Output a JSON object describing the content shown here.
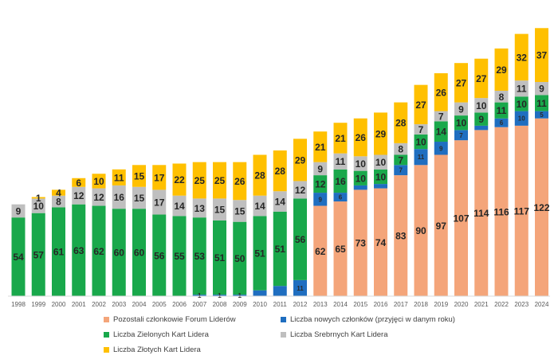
{
  "chart_data": {
    "type": "bar",
    "stacked": true,
    "categories": [
      "1998",
      "1999",
      "2000",
      "2001",
      "2002",
      "2003",
      "2004",
      "2005",
      "2006",
      "2007",
      "2008",
      "2009",
      "2010",
      "2011",
      "2012",
      "2013",
      "2014",
      "2015",
      "2016",
      "2017",
      "2018",
      "2019",
      "2020",
      "2021",
      "2022",
      "2023",
      "2024"
    ],
    "series": [
      {
        "name": "Pozostali członkowie Forum Liderów",
        "color": "#F4A57A",
        "values": [
          0,
          0,
          0,
          0,
          0,
          0,
          0,
          0,
          0,
          0,
          0,
          0,
          0,
          0,
          0,
          62,
          65,
          73,
          74,
          83,
          90,
          97,
          107,
          114,
          116,
          117,
          122
        ],
        "labels": [
          "",
          "",
          "",
          "",
          "",
          "",
          "",
          "",
          "",
          "",
          "",
          "",
          "",
          "",
          "",
          "62",
          "65",
          "73",
          "74",
          "83",
          "90",
          "97",
          "107",
          "114",
          "116",
          "117",
          "122"
        ]
      },
      {
        "name": "Liczba nowych członków (przyjęci w danym roku)",
        "color": "#1F6EC0",
        "values": [
          0,
          0,
          0,
          0,
          0,
          0,
          0,
          0,
          0,
          1,
          1,
          1,
          4,
          7,
          11,
          9,
          6,
          3,
          3,
          7,
          11,
          9,
          7,
          3,
          6,
          10,
          5
        ],
        "labels": [
          "",
          "",
          "",
          "",
          "",
          "",
          "",
          "",
          "",
          "1",
          "1",
          "1",
          "",
          "",
          "11",
          "9",
          "6",
          "",
          "",
          "7",
          "11",
          "9",
          "7",
          "",
          "6",
          "10",
          "5"
        ]
      },
      {
        "name": "Liczba Zielonych Kart Lidera",
        "color": "#19A84B",
        "values": [
          54,
          57,
          61,
          63,
          62,
          60,
          60,
          56,
          55,
          53,
          51,
          50,
          51,
          51,
          56,
          12,
          16,
          10,
          10,
          7,
          10,
          14,
          10,
          9,
          11,
          10,
          11
        ],
        "labels": [
          "54",
          "57",
          "61",
          "63",
          "62",
          "60",
          "60",
          "56",
          "55",
          "53",
          "51",
          "50",
          "51",
          "51",
          "56",
          "12",
          "16",
          "10",
          "10",
          "7",
          "10",
          "14",
          "10",
          "9",
          "11",
          "10",
          "11"
        ]
      },
      {
        "name": "Liczba Srebrnych Kart Lidera",
        "color": "#BFBFBF",
        "values": [
          9,
          10,
          8,
          12,
          12,
          16,
          15,
          17,
          14,
          13,
          15,
          15,
          14,
          14,
          12,
          9,
          11,
          10,
          10,
          8,
          7,
          7,
          9,
          10,
          8,
          11,
          9
        ],
        "labels": [
          "9",
          "10",
          "8",
          "12",
          "12",
          "16",
          "15",
          "17",
          "14",
          "13",
          "15",
          "15",
          "14",
          "14",
          "12",
          "9",
          "11",
          "10",
          "10",
          "8",
          "7",
          "7",
          "9",
          "10",
          "8",
          "11",
          "9"
        ]
      },
      {
        "name": "Liczba Złotych Kart Lidera",
        "color": "#FFC000",
        "values": [
          0,
          1,
          4,
          6,
          10,
          11,
          15,
          17,
          22,
          25,
          25,
          26,
          28,
          28,
          29,
          21,
          21,
          26,
          29,
          28,
          27,
          26,
          27,
          27,
          29,
          32,
          37
        ],
        "labels": [
          "",
          "1",
          "4",
          "6",
          "10",
          "11",
          "15",
          "17",
          "22",
          "25",
          "25",
          "26",
          "28",
          "28",
          "29",
          "21",
          "21",
          "26",
          "29",
          "28",
          "27",
          "26",
          "27",
          "27",
          "29",
          "32",
          "37"
        ]
      }
    ],
    "legend_position": "bottom",
    "grid": false
  }
}
